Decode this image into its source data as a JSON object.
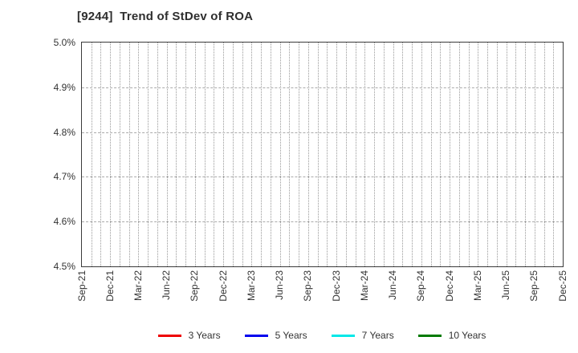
{
  "chart_data": {
    "type": "line",
    "title": "[9244]  Trend of StDev of ROA",
    "x_tick_labels": [
      "Sep-21",
      "Dec-21",
      "Mar-22",
      "Jun-22",
      "Sep-22",
      "Dec-22",
      "Mar-23",
      "Jun-23",
      "Sep-23",
      "Dec-23",
      "Mar-24",
      "Jun-24",
      "Sep-24",
      "Dec-24",
      "Mar-25",
      "Jun-25",
      "Sep-25",
      "Dec-25"
    ],
    "months_per_x_tick": 3,
    "y_tick_labels": [
      "5.0%",
      "4.9%",
      "4.8%",
      "4.7%",
      "4.6%",
      "4.5%"
    ],
    "ylim": [
      4.5,
      5.0
    ],
    "y_unit": "%",
    "grid": true,
    "legend_position": "bottom",
    "series": [
      {
        "name": "3 Years",
        "color": "#ee0000",
        "values": []
      },
      {
        "name": "5 Years",
        "color": "#0000ee",
        "values": []
      },
      {
        "name": "7 Years",
        "color": "#00e8e8",
        "values": []
      },
      {
        "name": "10 Years",
        "color": "#007a00",
        "values": []
      }
    ]
  }
}
